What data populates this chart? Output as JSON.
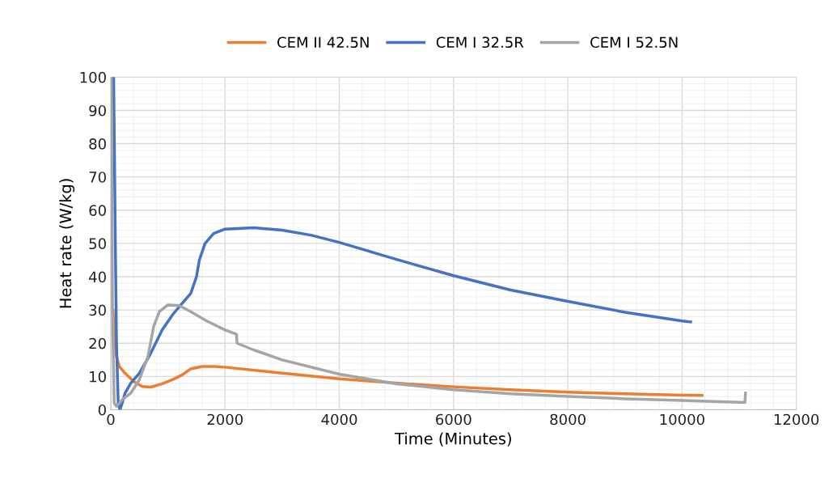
{
  "chart_data": {
    "type": "line",
    "xlabel": "Time (Minutes)",
    "ylabel": "Heat rate (W/kg)",
    "xlim": [
      0,
      12000
    ],
    "xticks": [
      0,
      2000,
      4000,
      6000,
      8000,
      10000,
      12000
    ],
    "ylim": [
      0,
      100
    ],
    "yticks": [
      0,
      10,
      20,
      30,
      40,
      50,
      60,
      70,
      80,
      90,
      100
    ],
    "grid": true,
    "legend": "top",
    "marker": "none",
    "line_style": "solid",
    "series": [
      {
        "name": "CEM II 42.5N",
        "color": "#ed7d31",
        "x": [
          40,
          60,
          100,
          150,
          250,
          400,
          550,
          700,
          900,
          1100,
          1250,
          1400,
          1600,
          1800,
          2000,
          3000,
          4000,
          5000,
          6000,
          7000,
          8000,
          9000,
          10000,
          10350
        ],
        "values": [
          30,
          22,
          16,
          13,
          11,
          8.5,
          7,
          6.8,
          7.8,
          9.2,
          10.5,
          12.3,
          13,
          13,
          12.8,
          11,
          9.3,
          8,
          6.9,
          6,
          5.3,
          4.8,
          4.4,
          4.3
        ]
      },
      {
        "name": "CEM I 32.5R",
        "color": "#4472c4",
        "x": [
          50,
          80,
          100,
          130,
          160,
          200,
          250,
          350,
          500,
          700,
          900,
          1100,
          1300,
          1400,
          1500,
          1550,
          1650,
          1800,
          2000,
          2500,
          3000,
          3500,
          4000,
          5000,
          6000,
          7000,
          8000,
          9000,
          10000,
          10150
        ],
        "values": [
          100,
          50,
          20,
          2,
          0,
          2,
          5,
          8,
          11,
          17,
          24,
          29,
          33,
          35,
          40,
          45,
          50,
          53,
          54.3,
          54.7,
          54,
          52.5,
          50.3,
          45.2,
          40.3,
          36,
          32.6,
          29.3,
          26.7,
          26.4
        ]
      },
      {
        "name": "CEM I 52.5N",
        "color": "#a5a5a5",
        "x": [
          10,
          30,
          60,
          100,
          200,
          350,
          500,
          650,
          750,
          850,
          1000,
          1200,
          1400,
          1700,
          2000,
          2200,
          2210,
          2500,
          3000,
          4000,
          5000,
          6000,
          7000,
          8000,
          9000,
          10000,
          11100,
          11110
        ],
        "values": [
          100,
          30,
          2,
          1,
          3,
          5,
          9,
          16,
          25,
          29.5,
          31.5,
          31.3,
          29.5,
          26.5,
          24,
          22.7,
          20,
          18,
          15,
          10.7,
          7.8,
          6,
          4.8,
          4,
          3.3,
          2.8,
          2.2,
          5
        ]
      }
    ]
  }
}
